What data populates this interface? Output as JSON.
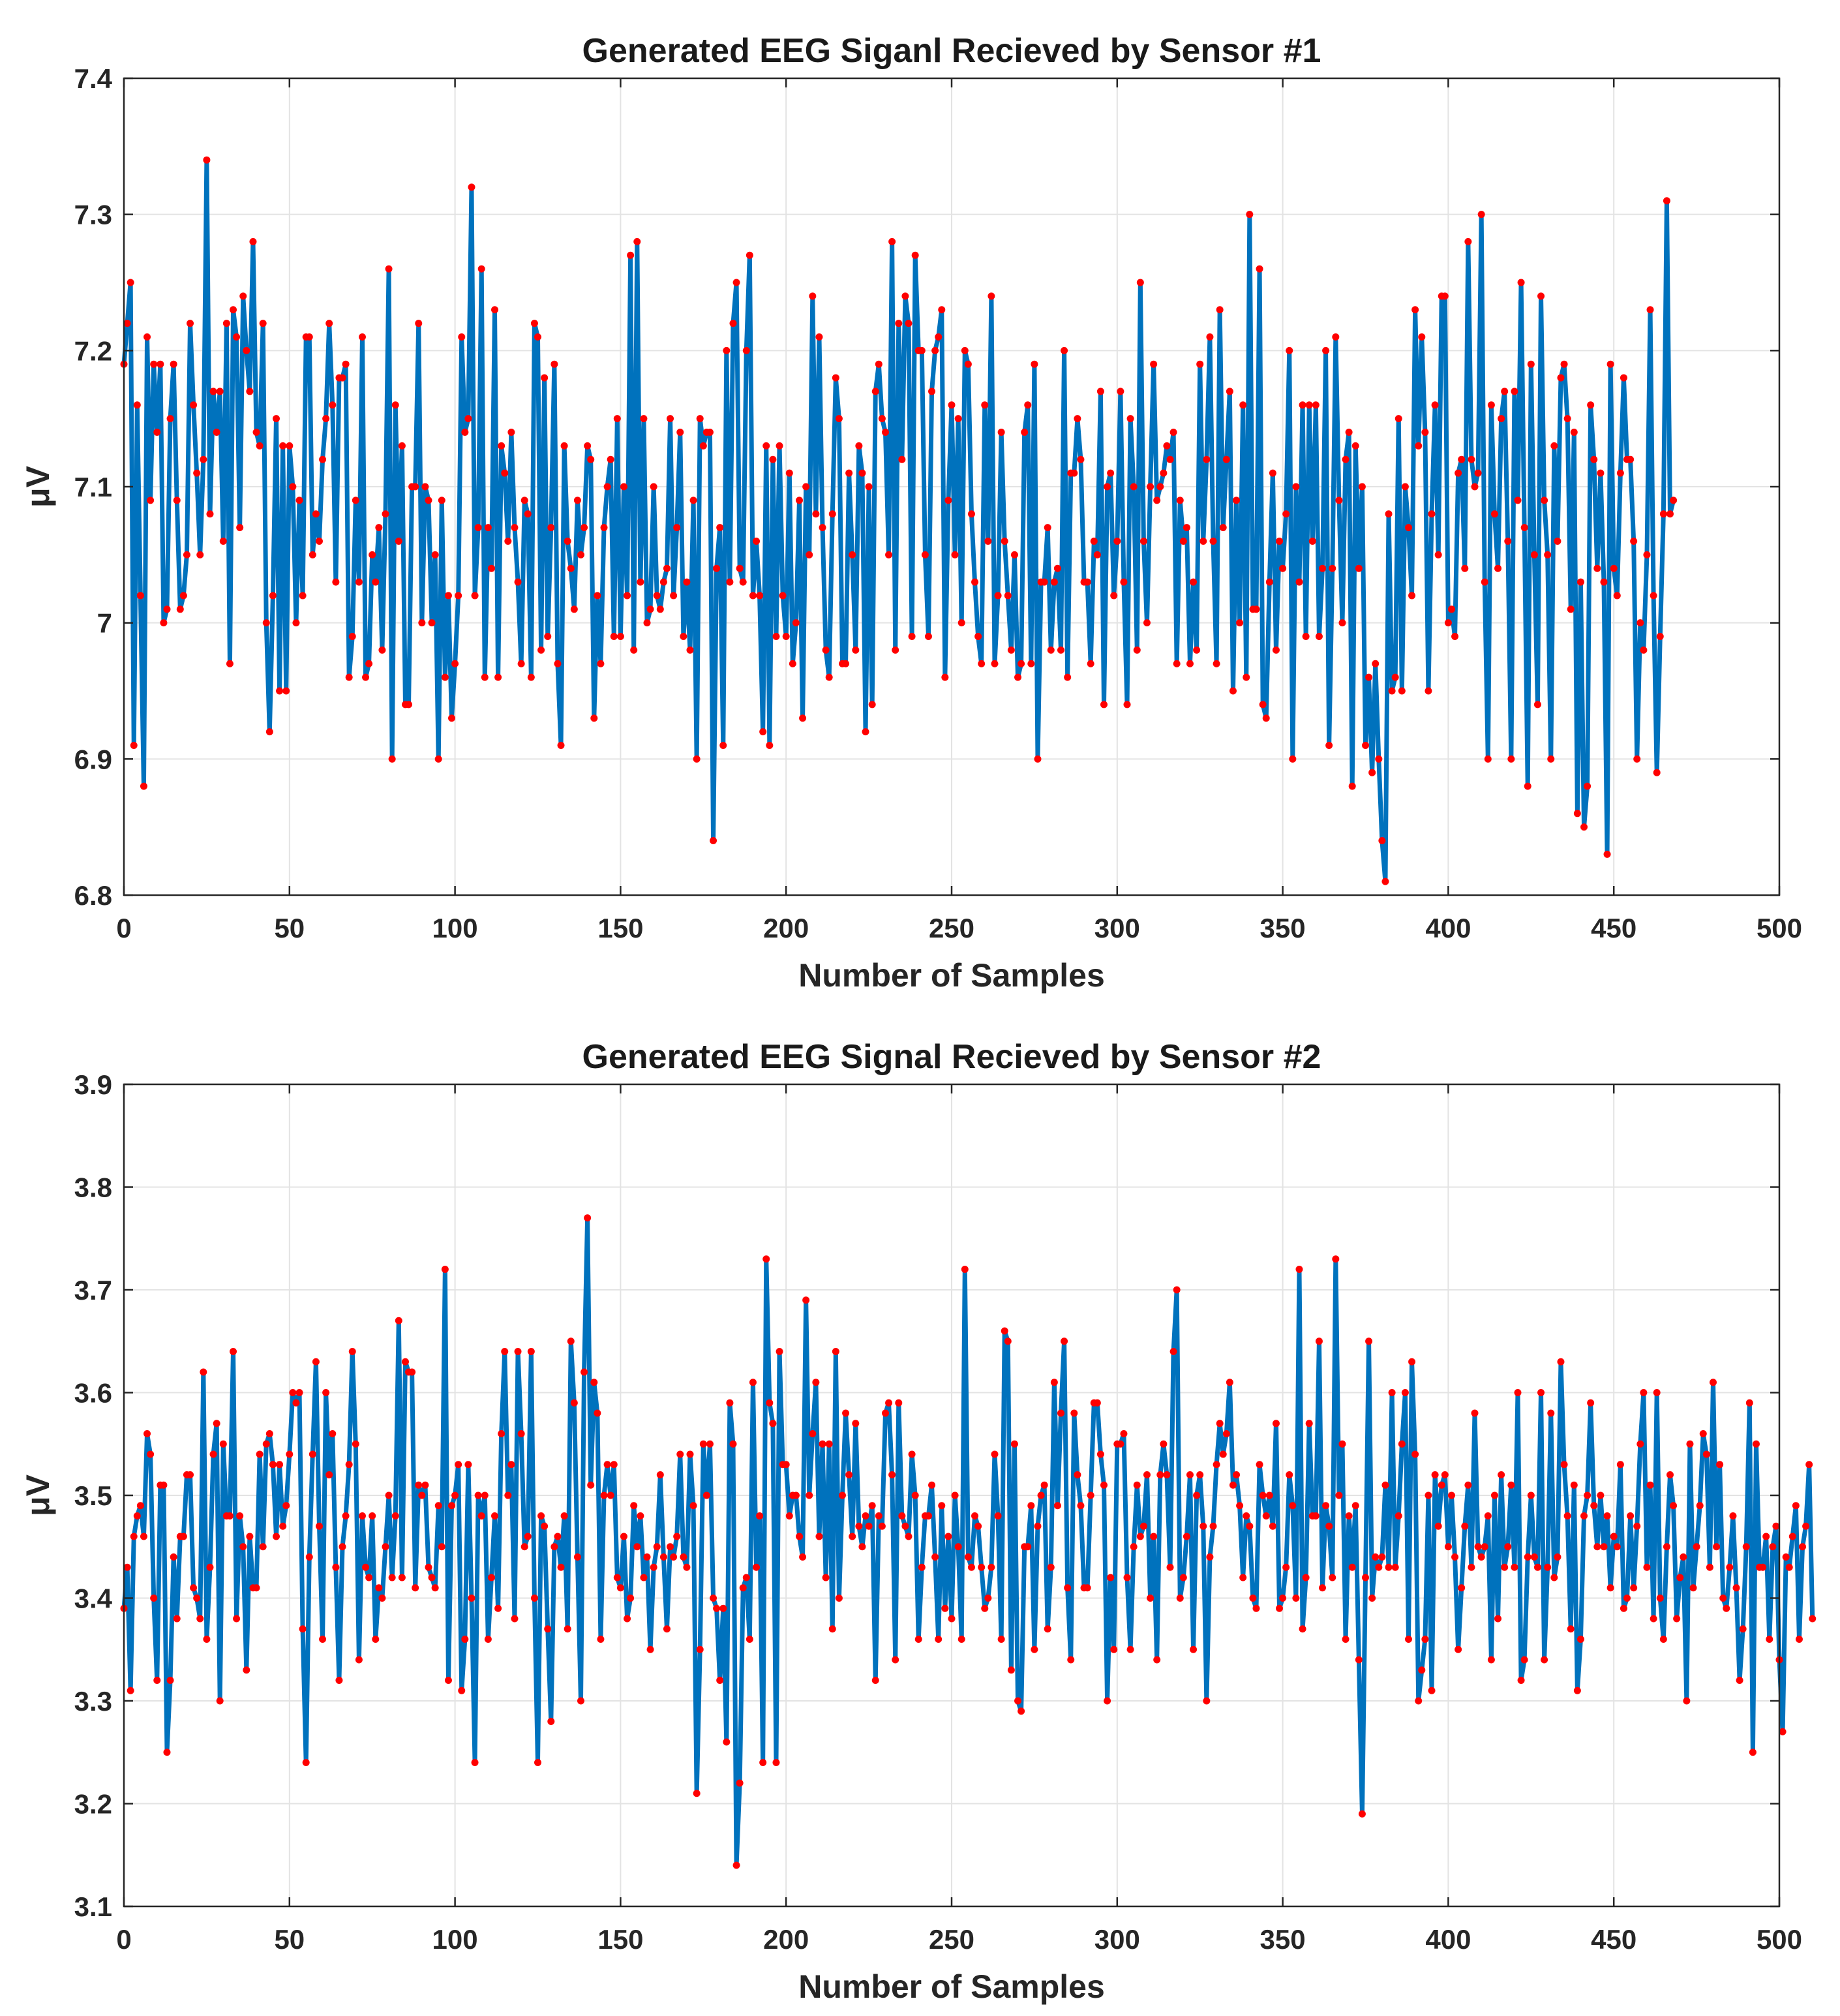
{
  "chart_data": [
    {
      "type": "line",
      "title": "Generated EEG Siganl Recieved by Sensor #1",
      "xlabel": "Number of Samples",
      "ylabel": "μV",
      "xlim": [
        0,
        500
      ],
      "ylim": [
        6.8,
        7.4
      ],
      "xticks": [
        0,
        50,
        100,
        150,
        200,
        250,
        300,
        350,
        400,
        450,
        500
      ],
      "xtick_labels": [
        "0",
        "50",
        "100",
        "150",
        "200",
        "250",
        "300",
        "350",
        "400",
        "450",
        "500"
      ],
      "yticks": [
        6.8,
        6.9,
        7.0,
        7.1,
        7.2,
        7.3,
        7.4
      ],
      "ytick_labels": [
        "6.8",
        "6.9",
        "7",
        "7.1",
        "7.2",
        "7.3",
        "7.4"
      ],
      "grid": true,
      "line_color": "#0072BD",
      "marker_color": "#FF0000",
      "marker": "dot",
      "series": [
        {
          "name": "Sensor #1",
          "x_start": 0,
          "x_step": 1,
          "values": [
            7.19,
            7.22,
            7.25,
            6.91,
            7.16,
            7.02,
            6.88,
            7.21,
            7.09,
            7.19,
            7.14,
            7.19,
            7.0,
            7.01,
            7.15,
            7.19,
            7.09,
            7.01,
            7.02,
            7.05,
            7.22,
            7.16,
            7.11,
            7.05,
            7.12,
            7.34,
            7.08,
            7.17,
            7.14,
            7.17,
            7.06,
            7.22,
            6.97,
            7.23,
            7.21,
            7.07,
            7.24,
            7.2,
            7.17,
            7.28,
            7.14,
            7.13,
            7.22,
            7.0,
            6.92,
            7.02,
            7.15,
            6.95,
            7.13,
            6.95,
            7.13,
            7.1,
            7.0,
            7.09,
            7.02,
            7.21,
            7.21,
            7.05,
            7.08,
            7.06,
            7.12,
            7.15,
            7.22,
            7.16,
            7.03,
            7.18,
            7.18,
            7.19,
            6.96,
            6.99,
            7.09,
            7.03,
            7.21,
            6.96,
            6.97,
            7.05,
            7.03,
            7.07,
            6.98,
            7.08,
            7.26,
            6.9,
            7.16,
            7.06,
            7.13,
            6.94,
            6.94,
            7.1,
            7.1,
            7.22,
            7.0,
            7.1,
            7.09,
            7.0,
            7.05,
            6.9,
            7.09,
            6.96,
            7.02,
            6.93,
            6.97,
            7.02,
            7.21,
            7.14,
            7.15,
            7.32,
            7.02,
            7.07,
            7.26,
            6.96,
            7.07,
            7.04,
            7.23,
            6.96,
            7.13,
            7.11,
            7.06,
            7.14,
            7.07,
            7.03,
            6.97,
            7.09,
            7.08,
            6.96,
            7.22,
            7.21,
            6.98,
            7.18,
            6.99,
            7.07,
            7.19,
            6.97,
            6.91,
            7.13,
            7.06,
            7.04,
            7.01,
            7.09,
            7.05,
            7.07,
            7.13,
            7.12,
            6.93,
            7.02,
            6.97,
            7.07,
            7.1,
            7.12,
            6.99,
            7.15,
            6.99,
            7.1,
            7.02,
            7.27,
            6.98,
            7.28,
            7.03,
            7.15,
            7.0,
            7.01,
            7.1,
            7.02,
            7.01,
            7.03,
            7.04,
            7.15,
            7.02,
            7.07,
            7.14,
            6.99,
            7.03,
            6.98,
            7.09,
            6.9,
            7.15,
            7.13,
            7.14,
            7.14,
            6.84,
            7.04,
            7.07,
            6.91,
            7.2,
            7.03,
            7.22,
            7.25,
            7.04,
            7.03,
            7.2,
            7.27,
            7.02,
            7.06,
            7.02,
            6.92,
            7.13,
            6.91,
            7.12,
            6.99,
            7.13,
            7.02,
            6.99,
            7.11,
            6.97,
            7.0,
            7.09,
            6.93,
            7.1,
            7.05,
            7.24,
            7.08,
            7.21,
            7.07,
            6.98,
            6.96,
            7.08,
            7.18,
            7.15,
            6.97,
            6.97,
            7.11,
            7.05,
            6.98,
            7.13,
            7.11,
            6.92,
            7.1,
            6.94,
            7.17,
            7.19,
            7.15,
            7.14,
            7.05,
            7.28,
            6.98,
            7.22,
            7.12,
            7.24,
            7.22,
            6.99,
            7.27,
            7.2,
            7.2,
            7.05,
            6.99,
            7.17,
            7.2,
            7.21,
            7.23,
            6.96,
            7.09,
            7.16,
            7.05,
            7.15,
            7.0,
            7.2,
            7.19,
            7.08,
            7.03,
            6.99,
            6.97,
            7.16,
            7.06,
            7.24,
            6.97,
            7.02,
            7.14,
            7.06,
            7.02,
            6.98,
            7.05,
            6.96,
            6.97,
            7.14,
            7.16,
            6.97,
            7.19,
            6.9,
            7.03,
            7.03,
            7.07,
            6.98,
            7.03,
            7.04,
            6.98,
            7.2,
            6.96,
            7.11,
            7.11,
            7.15,
            7.12,
            7.03,
            7.03,
            6.97,
            7.06,
            7.05,
            7.17,
            6.94,
            7.1,
            7.11,
            7.02,
            7.06,
            7.17,
            7.03,
            6.94,
            7.15,
            7.1,
            6.98,
            7.25,
            7.06,
            7.0,
            7.1,
            7.19,
            7.09,
            7.1,
            7.11,
            7.13,
            7.12,
            7.14,
            6.97,
            7.09,
            7.06,
            7.07,
            6.97,
            7.03,
            6.98,
            7.19,
            7.06,
            7.12,
            7.21,
            7.06,
            6.97,
            7.23,
            7.07,
            7.12,
            7.17,
            6.95,
            7.09,
            7.0,
            7.16,
            6.96,
            7.3,
            7.01,
            7.01,
            7.26,
            6.94,
            6.93,
            7.03,
            7.11,
            6.98,
            7.06,
            7.04,
            7.08,
            7.2,
            6.9,
            7.1,
            7.03,
            7.16,
            6.99,
            7.16,
            7.06,
            7.16,
            6.99,
            7.04,
            7.2,
            6.91,
            7.04,
            7.21,
            7.09,
            7.0,
            7.12,
            7.14,
            6.88,
            7.13,
            7.04,
            7.1,
            6.91,
            6.96,
            6.89,
            6.97,
            6.9,
            6.84,
            6.81,
            7.08,
            6.95,
            6.96,
            7.15,
            6.95,
            7.1,
            7.07,
            7.02,
            7.23,
            7.13,
            7.21,
            7.14,
            6.95,
            7.08,
            7.16,
            7.05,
            7.24,
            7.24,
            7.0,
            7.01,
            6.99,
            7.11,
            7.12,
            7.04,
            7.28,
            7.12,
            7.1,
            7.11,
            7.3,
            7.03,
            6.9,
            7.16,
            7.08,
            7.04,
            7.15,
            7.17,
            7.06,
            6.9,
            7.17,
            7.09,
            7.25,
            7.07,
            6.88,
            7.19,
            7.05,
            6.94,
            7.24,
            7.09,
            7.05,
            6.9,
            7.13,
            7.06,
            7.18,
            7.19,
            7.15,
            7.01,
            7.14,
            6.86,
            7.03,
            6.85,
            6.88,
            7.16,
            7.12,
            7.04,
            7.11,
            7.03,
            6.83,
            7.19,
            7.04,
            7.02,
            7.11,
            7.18,
            7.12,
            7.12,
            7.06,
            6.9,
            7.0,
            6.98,
            7.05,
            7.23,
            7.02,
            6.89,
            6.99,
            7.08,
            7.31,
            7.08,
            7.09
          ]
        }
      ]
    },
    {
      "type": "line",
      "title": "Generated EEG Signal Recieved by Sensor #2",
      "xlabel": "Number of Samples",
      "ylabel": "μV",
      "xlim": [
        0,
        500
      ],
      "ylim": [
        3.1,
        3.9
      ],
      "xticks": [
        0,
        50,
        100,
        150,
        200,
        250,
        300,
        350,
        400,
        450,
        500
      ],
      "xtick_labels": [
        "0",
        "50",
        "100",
        "150",
        "200",
        "250",
        "300",
        "350",
        "400",
        "450",
        "500"
      ],
      "yticks": [
        3.1,
        3.2,
        3.3,
        3.4,
        3.5,
        3.6,
        3.7,
        3.8,
        3.9
      ],
      "ytick_labels": [
        "3.1",
        "3.2",
        "3.3",
        "3.4",
        "3.5",
        "3.6",
        "3.7",
        "3.8",
        "3.9"
      ],
      "grid": true,
      "line_color": "#0072BD",
      "marker_color": "#FF0000",
      "marker": "dot",
      "series": [
        {
          "name": "Sensor #2",
          "x_start": 0,
          "x_step": 1,
          "values": [
            3.39,
            3.43,
            3.31,
            3.46,
            3.48,
            3.49,
            3.46,
            3.56,
            3.54,
            3.4,
            3.32,
            3.51,
            3.51,
            3.25,
            3.32,
            3.44,
            3.38,
            3.46,
            3.46,
            3.52,
            3.52,
            3.41,
            3.4,
            3.38,
            3.62,
            3.36,
            3.43,
            3.54,
            3.57,
            3.3,
            3.55,
            3.48,
            3.48,
            3.64,
            3.38,
            3.48,
            3.45,
            3.33,
            3.46,
            3.41,
            3.41,
            3.54,
            3.45,
            3.55,
            3.56,
            3.53,
            3.46,
            3.53,
            3.47,
            3.49,
            3.54,
            3.6,
            3.59,
            3.6,
            3.37,
            3.24,
            3.44,
            3.54,
            3.63,
            3.47,
            3.36,
            3.6,
            3.52,
            3.56,
            3.43,
            3.32,
            3.45,
            3.48,
            3.53,
            3.64,
            3.55,
            3.34,
            3.48,
            3.43,
            3.42,
            3.48,
            3.36,
            3.41,
            3.4,
            3.45,
            3.5,
            3.42,
            3.48,
            3.67,
            3.42,
            3.63,
            3.62,
            3.62,
            3.41,
            3.51,
            3.5,
            3.51,
            3.43,
            3.42,
            3.41,
            3.49,
            3.45,
            3.72,
            3.32,
            3.49,
            3.5,
            3.53,
            3.31,
            3.36,
            3.53,
            3.4,
            3.24,
            3.5,
            3.48,
            3.5,
            3.36,
            3.42,
            3.48,
            3.39,
            3.56,
            3.64,
            3.5,
            3.53,
            3.38,
            3.64,
            3.56,
            3.45,
            3.46,
            3.64,
            3.4,
            3.24,
            3.48,
            3.47,
            3.37,
            3.28,
            3.45,
            3.46,
            3.43,
            3.48,
            3.37,
            3.65,
            3.59,
            3.44,
            3.3,
            3.62,
            3.77,
            3.51,
            3.61,
            3.58,
            3.36,
            3.5,
            3.53,
            3.5,
            3.53,
            3.42,
            3.41,
            3.46,
            3.38,
            3.4,
            3.49,
            3.45,
            3.48,
            3.42,
            3.44,
            3.35,
            3.43,
            3.45,
            3.52,
            3.44,
            3.37,
            3.45,
            3.44,
            3.46,
            3.54,
            3.44,
            3.43,
            3.54,
            3.49,
            3.21,
            3.35,
            3.55,
            3.5,
            3.55,
            3.4,
            3.39,
            3.32,
            3.39,
            3.26,
            3.59,
            3.55,
            3.14,
            3.22,
            3.41,
            3.42,
            3.36,
            3.61,
            3.43,
            3.48,
            3.24,
            3.73,
            3.59,
            3.57,
            3.24,
            3.64,
            3.53,
            3.53,
            3.48,
            3.5,
            3.5,
            3.46,
            3.44,
            3.69,
            3.5,
            3.56,
            3.61,
            3.46,
            3.55,
            3.42,
            3.55,
            3.37,
            3.64,
            3.4,
            3.5,
            3.58,
            3.52,
            3.46,
            3.57,
            3.47,
            3.45,
            3.48,
            3.47,
            3.49,
            3.32,
            3.48,
            3.47,
            3.58,
            3.59,
            3.52,
            3.34,
            3.59,
            3.48,
            3.47,
            3.46,
            3.54,
            3.5,
            3.36,
            3.43,
            3.48,
            3.48,
            3.51,
            3.44,
            3.36,
            3.49,
            3.39,
            3.46,
            3.38,
            3.5,
            3.45,
            3.36,
            3.72,
            3.44,
            3.43,
            3.48,
            3.47,
            3.43,
            3.39,
            3.4,
            3.43,
            3.54,
            3.48,
            3.36,
            3.66,
            3.65,
            3.33,
            3.55,
            3.3,
            3.29,
            3.45,
            3.45,
            3.49,
            3.35,
            3.47,
            3.5,
            3.51,
            3.37,
            3.43,
            3.61,
            3.49,
            3.58,
            3.65,
            3.41,
            3.34,
            3.58,
            3.52,
            3.49,
            3.41,
            3.41,
            3.5,
            3.59,
            3.59,
            3.54,
            3.51,
            3.3,
            3.42,
            3.35,
            3.55,
            3.55,
            3.56,
            3.42,
            3.35,
            3.45,
            3.51,
            3.46,
            3.47,
            3.52,
            3.4,
            3.46,
            3.34,
            3.52,
            3.55,
            3.52,
            3.43,
            3.64,
            3.7,
            3.4,
            3.42,
            3.46,
            3.52,
            3.35,
            3.5,
            3.52,
            3.47,
            3.3,
            3.44,
            3.47,
            3.53,
            3.57,
            3.54,
            3.56,
            3.61,
            3.51,
            3.52,
            3.49,
            3.42,
            3.48,
            3.47,
            3.4,
            3.39,
            3.53,
            3.5,
            3.48,
            3.5,
            3.47,
            3.57,
            3.39,
            3.4,
            3.43,
            3.52,
            3.49,
            3.4,
            3.72,
            3.37,
            3.42,
            3.57,
            3.48,
            3.48,
            3.65,
            3.41,
            3.49,
            3.47,
            3.42,
            3.73,
            3.5,
            3.55,
            3.36,
            3.48,
            3.43,
            3.49,
            3.34,
            3.19,
            3.42,
            3.65,
            3.4,
            3.44,
            3.43,
            3.44,
            3.51,
            3.43,
            3.6,
            3.43,
            3.48,
            3.55,
            3.6,
            3.36,
            3.63,
            3.54,
            3.3,
            3.33,
            3.36,
            3.5,
            3.31,
            3.52,
            3.47,
            3.51,
            3.52,
            3.45,
            3.5,
            3.44,
            3.35,
            3.41,
            3.47,
            3.51,
            3.43,
            3.58,
            3.45,
            3.44,
            3.45,
            3.48,
            3.34,
            3.5,
            3.38,
            3.52,
            3.43,
            3.45,
            3.51,
            3.43,
            3.6,
            3.32,
            3.34,
            3.44,
            3.5,
            3.44,
            3.43,
            3.6,
            3.34,
            3.43,
            3.58,
            3.42,
            3.44,
            3.63,
            3.53,
            3.48,
            3.37,
            3.51,
            3.31,
            3.36,
            3.48,
            3.5,
            3.59,
            3.49,
            3.45,
            3.5,
            3.45,
            3.48,
            3.41,
            3.46,
            3.45,
            3.53,
            3.39,
            3.4,
            3.48,
            3.41,
            3.47,
            3.55,
            3.6,
            3.43,
            3.51,
            3.38,
            3.6,
            3.4,
            3.36,
            3.45,
            3.52,
            3.49,
            3.38,
            3.42,
            3.44,
            3.3,
            3.55,
            3.41,
            3.45,
            3.49,
            3.56,
            3.54,
            3.43,
            3.61,
            3.45,
            3.53,
            3.4,
            3.39,
            3.43,
            3.48,
            3.41,
            3.32,
            3.37,
            3.45,
            3.59,
            3.25,
            3.55,
            3.43,
            3.43,
            3.46,
            3.36,
            3.45,
            3.47,
            3.34,
            3.27,
            3.44,
            3.43,
            3.46,
            3.49,
            3.36,
            3.45,
            3.47,
            3.53,
            3.38
          ]
        }
      ]
    }
  ]
}
